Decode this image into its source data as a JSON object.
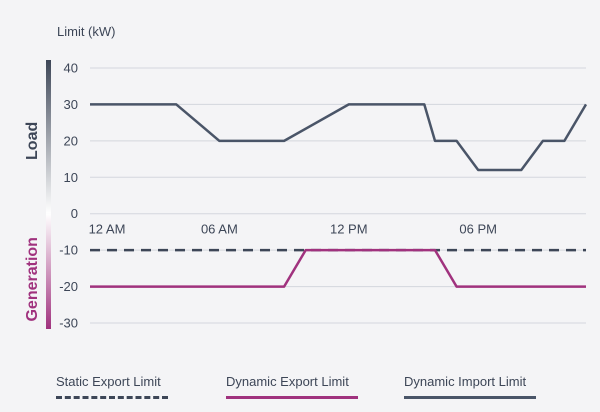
{
  "chart_data": {
    "type": "line",
    "ylabel": "Limit (kW)",
    "x_ticks": [
      "12 AM",
      "06 AM",
      "12 PM",
      "06 PM"
    ],
    "x_range_hours": [
      0,
      23
    ],
    "y_ticks": [
      40,
      30,
      20,
      10,
      0,
      -10,
      -20,
      -30
    ],
    "ylim": [
      -30,
      40
    ],
    "region_labels": {
      "positive": "Load",
      "negative": "Generation"
    },
    "grid": true,
    "legend_position": "bottom",
    "series": [
      {
        "name": "Static Export Limit",
        "color": "#3d4657",
        "style": "dashed",
        "points": [
          [
            0,
            -10
          ],
          [
            23,
            -10
          ]
        ]
      },
      {
        "name": "Dynamic Export Limit",
        "color": "#a0327e",
        "style": "solid",
        "points": [
          [
            0,
            -20
          ],
          [
            9,
            -20
          ],
          [
            10,
            -10
          ],
          [
            16,
            -10
          ],
          [
            17,
            -20
          ],
          [
            23,
            -20
          ]
        ]
      },
      {
        "name": "Dynamic Import Limit",
        "color": "#4a5568",
        "style": "solid",
        "points": [
          [
            0,
            30
          ],
          [
            4,
            30
          ],
          [
            6,
            20
          ],
          [
            9,
            20
          ],
          [
            12,
            30
          ],
          [
            15.5,
            30
          ],
          [
            16,
            20
          ],
          [
            17,
            20
          ],
          [
            18,
            12
          ],
          [
            20,
            12
          ],
          [
            21,
            20
          ],
          [
            22,
            20
          ],
          [
            23,
            30
          ]
        ]
      }
    ]
  },
  "legend": [
    {
      "label": "Static Export Limit",
      "color": "#3d4657",
      "style": "dashed"
    },
    {
      "label": "Dynamic Export Limit",
      "color": "#a0327e",
      "style": "solid"
    },
    {
      "label": "Dynamic Import Limit",
      "color": "#4a5568",
      "style": "solid"
    }
  ]
}
